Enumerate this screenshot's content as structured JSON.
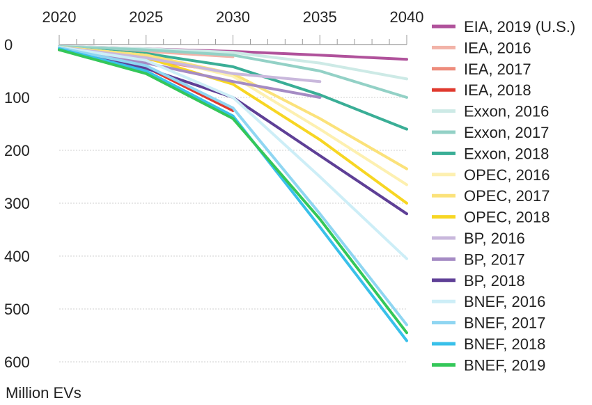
{
  "chart_data": {
    "type": "line",
    "ylabel": "Million EVs",
    "xlim": [
      2020,
      2040
    ],
    "ylim": [
      0,
      600
    ],
    "x_ticks": [
      2020,
      2025,
      2030,
      2035,
      2040
    ],
    "y_ticks": [
      0,
      100,
      200,
      300,
      400,
      500,
      600
    ],
    "grid": true,
    "legend_position": "right",
    "series": [
      {
        "name": "EIA, 2019 (U.S.)",
        "color": "#b0529b",
        "x": [
          2020,
          2025,
          2030,
          2035,
          2040
        ],
        "y": [
          3,
          8,
          13,
          20,
          28
        ]
      },
      {
        "name": "IEA, 2016",
        "color": "#f2b3a8",
        "x": [
          2020,
          2025,
          2030
        ],
        "y": [
          5,
          13,
          23
        ]
      },
      {
        "name": "IEA, 2017",
        "color": "#ee8c7c",
        "x": [
          2020,
          2025,
          2030
        ],
        "y": [
          8,
          27,
          55
        ]
      },
      {
        "name": "IEA, 2018",
        "color": "#e03a2f",
        "x": [
          2020,
          2025,
          2030
        ],
        "y": [
          10,
          43,
          125
        ]
      },
      {
        "name": "Exxon, 2016",
        "color": "#cdeae6",
        "x": [
          2020,
          2025,
          2030,
          2035,
          2040
        ],
        "y": [
          3,
          8,
          15,
          35,
          65
        ]
      },
      {
        "name": "Exxon, 2017",
        "color": "#93d1c6",
        "x": [
          2020,
          2025,
          2030,
          2035,
          2040
        ],
        "y": [
          4,
          10,
          20,
          50,
          100
        ]
      },
      {
        "name": "Exxon, 2018",
        "color": "#3aae96",
        "x": [
          2020,
          2025,
          2030,
          2035,
          2040
        ],
        "y": [
          6,
          17,
          42,
          95,
          160
        ]
      },
      {
        "name": "OPEC, 2016",
        "color": "#fdf0b0",
        "x": [
          2020,
          2025,
          2030,
          2035,
          2040
        ],
        "y": [
          5,
          20,
          60,
          160,
          265
        ]
      },
      {
        "name": "OPEC, 2017",
        "color": "#fbe27a",
        "x": [
          2020,
          2025,
          2030,
          2035,
          2040
        ],
        "y": [
          5,
          20,
          55,
          140,
          235
        ]
      },
      {
        "name": "OPEC, 2018",
        "color": "#f7d623",
        "x": [
          2020,
          2025,
          2030,
          2035,
          2040
        ],
        "y": [
          6,
          25,
          75,
          180,
          300
        ]
      },
      {
        "name": "BP, 2016",
        "color": "#c9b8dc",
        "x": [
          2020,
          2025,
          2030,
          2035
        ],
        "y": [
          5,
          25,
          55,
          70
        ]
      },
      {
        "name": "BP, 2017",
        "color": "#a58bc4",
        "x": [
          2020,
          2025,
          2030,
          2035
        ],
        "y": [
          6,
          35,
          70,
          100
        ]
      },
      {
        "name": "BP, 2018",
        "color": "#5e3f96",
        "x": [
          2020,
          2025,
          2030,
          2035,
          2040
        ],
        "y": [
          8,
          45,
          100,
          210,
          320
        ]
      },
      {
        "name": "BNEF, 2016",
        "color": "#cdeef7",
        "x": [
          2020,
          2025,
          2030,
          2035,
          2040
        ],
        "y": [
          5,
          30,
          100,
          250,
          405
        ]
      },
      {
        "name": "BNEF, 2017",
        "color": "#8fd6f2",
        "x": [
          2020,
          2025,
          2030,
          2035,
          2040
        ],
        "y": [
          6,
          40,
          120,
          320,
          530
        ]
      },
      {
        "name": "BNEF, 2018",
        "color": "#39c0ea",
        "x": [
          2020,
          2025,
          2030,
          2035,
          2040
        ],
        "y": [
          8,
          50,
          135,
          345,
          560
        ]
      },
      {
        "name": "BNEF, 2019",
        "color": "#34c759",
        "x": [
          2020,
          2025,
          2030,
          2035,
          2040
        ],
        "y": [
          10,
          55,
          140,
          330,
          545
        ]
      }
    ]
  }
}
